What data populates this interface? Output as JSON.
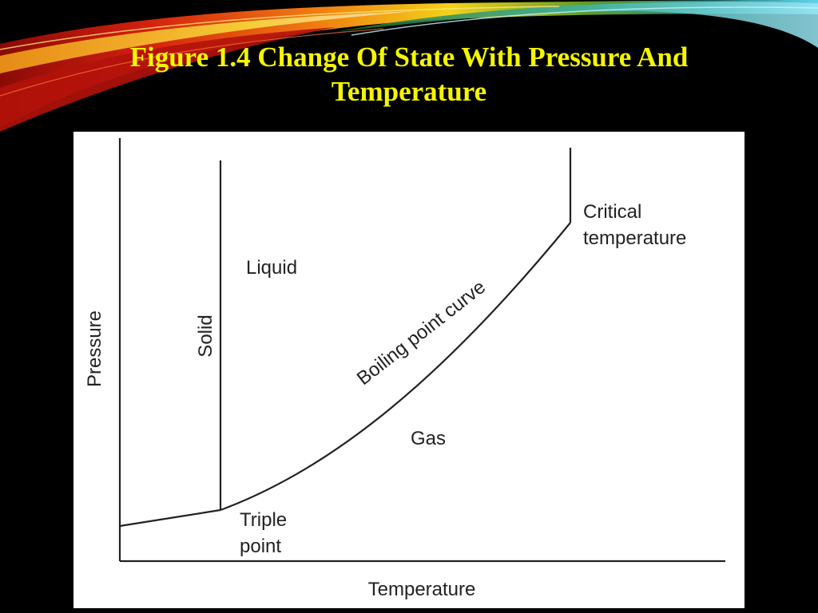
{
  "slide": {
    "title_line1": "Figure 1.4 Change Of State With Pressure And",
    "title_line2": "Temperature",
    "colors": {
      "background": "#000000",
      "title": "#f5f500",
      "swoosh_red": "#c8160c",
      "swoosh_orange": "#f07a10",
      "swoosh_yellow": "#f2d21a",
      "swoosh_green": "#2f8f2c",
      "swoosh_cyan": "#49c6e0"
    }
  },
  "diagram": {
    "axis_y_label": "Pressure",
    "axis_x_label": "Temperature",
    "region_solid": "Solid",
    "region_liquid": "Liquid",
    "region_gas": "Gas",
    "curve_label": "Boiling point curve",
    "triple_point_line1": "Triple",
    "triple_point_line2": "point",
    "critical_line1": "Critical",
    "critical_line2": "temperature"
  }
}
